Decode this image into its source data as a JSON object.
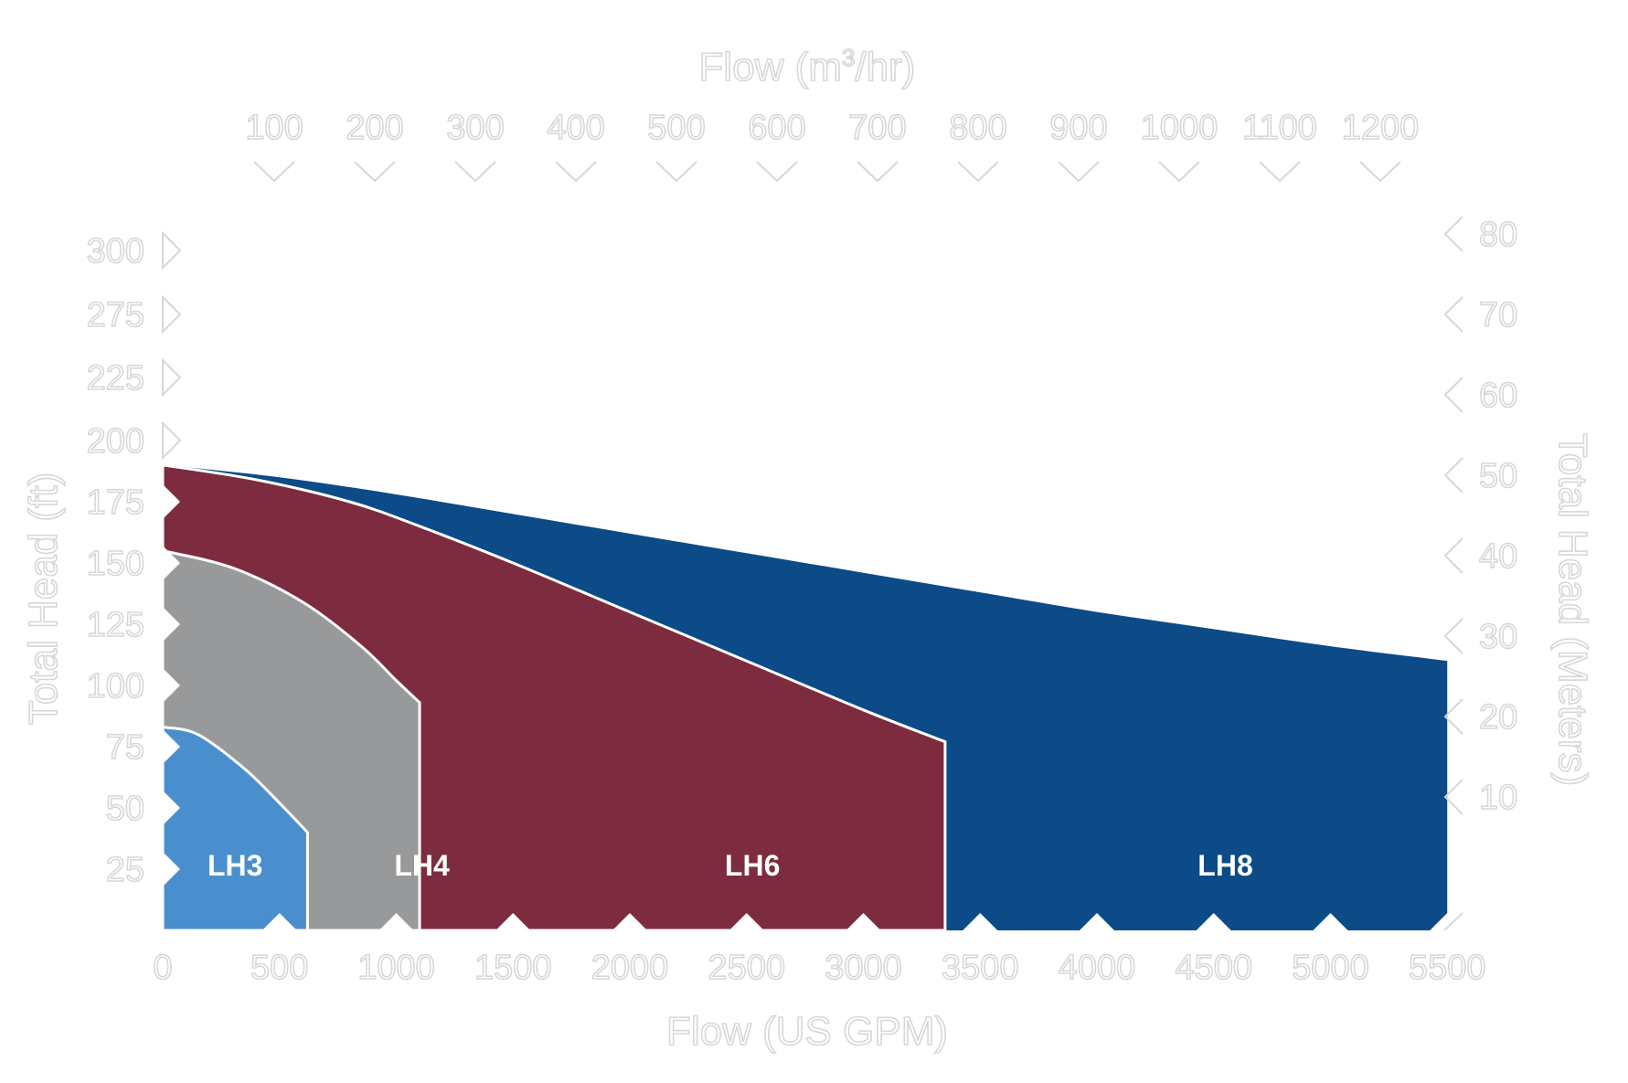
{
  "chart_data": {
    "type": "area",
    "xlabel": "Flow (US GPM)",
    "x2label_prefix": "Flow (m",
    "x2label_sup": "3",
    "x2label_suffix": "/hr)",
    "ylabel": "Total Head (ft)",
    "y2label": "Total Head (Meters)",
    "x_ticks": [
      0,
      500,
      1000,
      1500,
      2000,
      2500,
      3000,
      3500,
      4000,
      4500,
      5000,
      5500
    ],
    "x2_ticks": [
      100,
      200,
      300,
      400,
      500,
      600,
      700,
      800,
      900,
      1000,
      1100,
      1200
    ],
    "y_ticks": [
      25,
      50,
      75,
      100,
      125,
      150,
      175,
      200,
      225,
      275,
      300
    ],
    "y2_ticks": [
      10,
      20,
      30,
      40,
      50,
      60,
      70,
      80
    ],
    "colors": {
      "LH8": "#0c4b87",
      "LH6": "#7d2c40",
      "LH4": "#98999b",
      "LH3": "#4a8fcd"
    },
    "series": [
      {
        "name": "LH8",
        "points": [
          [
            0,
            190
          ],
          [
            500,
            185
          ],
          [
            1000,
            178
          ],
          [
            1500,
            170
          ],
          [
            2000,
            162
          ],
          [
            2500,
            154
          ],
          [
            3000,
            146
          ],
          [
            3500,
            138
          ],
          [
            4000,
            130
          ],
          [
            4500,
            123
          ],
          [
            5000,
            116
          ],
          [
            5500,
            110
          ]
        ]
      },
      {
        "name": "LH6",
        "points": [
          [
            0,
            190
          ],
          [
            400,
            184
          ],
          [
            800,
            175
          ],
          [
            1100,
            165
          ],
          [
            1500,
            150
          ],
          [
            2000,
            130
          ],
          [
            2500,
            110
          ],
          [
            3000,
            90
          ],
          [
            3350,
            77
          ],
          [
            3350,
            0
          ]
        ]
      },
      {
        "name": "LH4",
        "points": [
          [
            0,
            155
          ],
          [
            300,
            148
          ],
          [
            600,
            134
          ],
          [
            850,
            116
          ],
          [
            1000,
            102
          ],
          [
            1100,
            93
          ],
          [
            1100,
            0
          ]
        ]
      },
      {
        "name": "LH3",
        "points": [
          [
            0,
            83
          ],
          [
            150,
            80
          ],
          [
            350,
            66
          ],
          [
            500,
            52
          ],
          [
            620,
            40
          ],
          [
            620,
            0
          ]
        ]
      }
    ]
  }
}
